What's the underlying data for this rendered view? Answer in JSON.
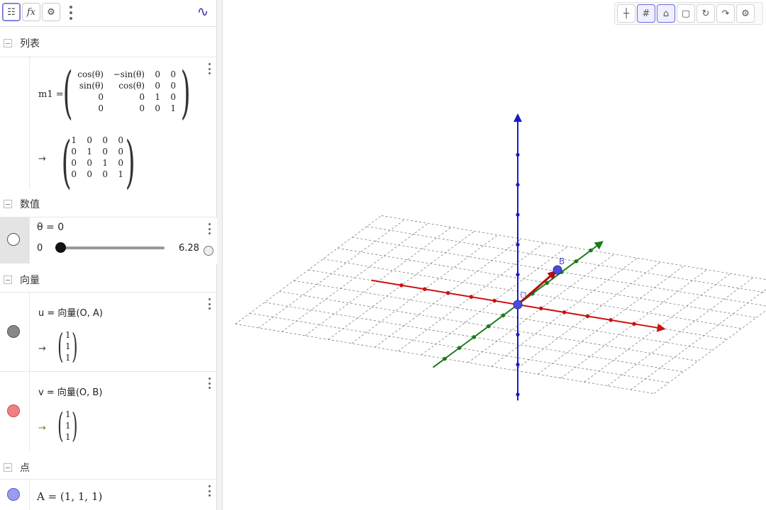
{
  "toolbar": {
    "buttons": [
      {
        "name": "algebra-view",
        "glyph": "☷"
      },
      {
        "name": "fx",
        "glyph": "fx"
      },
      {
        "name": "settings",
        "glyph": "⚙"
      }
    ],
    "graph_icon": "∿"
  },
  "sections": {
    "lists": "列表",
    "numbers": "数值",
    "vectors": "向量",
    "points": "点"
  },
  "m1": {
    "label": "m1 =",
    "matrix": [
      [
        "cos(θ)",
        "−sin(θ)",
        "0",
        "0"
      ],
      [
        "sin(θ)",
        "cos(θ)",
        "0",
        "0"
      ],
      [
        "0",
        "0",
        "1",
        "0"
      ],
      [
        "0",
        "0",
        "0",
        "1"
      ]
    ],
    "result_arrow": "→",
    "result": [
      [
        "1",
        "0",
        "0",
        "0"
      ],
      [
        "0",
        "1",
        "0",
        "0"
      ],
      [
        "0",
        "0",
        "1",
        "0"
      ],
      [
        "0",
        "0",
        "0",
        "1"
      ]
    ]
  },
  "theta": {
    "label": "θ = 0",
    "min": "0",
    "max": "6.28",
    "value_fraction": 0.0
  },
  "vector_u": {
    "definition": "u = 向量(O, A)",
    "arrow": "→",
    "components": [
      "1",
      "1",
      "1"
    ],
    "color": "#888888"
  },
  "vector_v": {
    "definition": "v = 向量(O, B)",
    "arrow": "→",
    "components": [
      "1",
      "1",
      "1"
    ],
    "color": "#f08080"
  },
  "point_a": {
    "definition": "A = (1, 1, 1)",
    "color": "#9a9cf0"
  },
  "graphics": {
    "point_labels": {
      "origin": "O",
      "b": "B"
    },
    "colors": {
      "x_axis": "#cc1111",
      "y_axis": "#1a7a1a",
      "z_axis": "#1a1acc",
      "vector": "#aa1111",
      "point": "#4a4ae0"
    },
    "toolbar_icons": [
      "axes-icon",
      "grid-icon",
      "home-icon",
      "cube-icon",
      "rotate-icon",
      "redo-view-icon",
      "graphics-settings-icon"
    ]
  }
}
